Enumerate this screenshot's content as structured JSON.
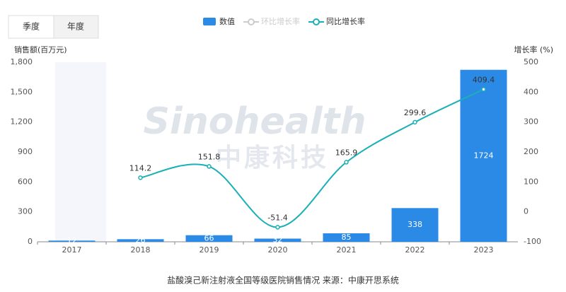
{
  "chart_data": {
    "type": "bar_line",
    "toggle_options": [
      "季度",
      "年度"
    ],
    "watermark": [
      "Sinohealth",
      "中康科技"
    ],
    "y_label": "销售额(百万元)",
    "y2_label": "增长率 (%)",
    "caption": "盐酸溴己新注射液全国等级医院销售情况 来源：中康开思系统",
    "categories": [
      "2017",
      "2018",
      "2019",
      "2020",
      "2021",
      "2022",
      "2023"
    ],
    "series": [
      {
        "name": "数值",
        "type": "bar",
        "color": "#2b8ae6",
        "values": [
          12,
          26,
          66,
          32,
          85,
          338,
          1724
        ]
      },
      {
        "name": "环比增长率",
        "type": "line",
        "color": "#cccccc",
        "visible": false,
        "axis": "y2",
        "values": [
          null,
          null,
          null,
          null,
          null,
          null,
          null
        ]
      },
      {
        "name": "同比增长率",
        "type": "line",
        "color": "#1ab0b5",
        "axis": "y2",
        "values": [
          null,
          114.2,
          151.8,
          -51.4,
          165.9,
          299.6,
          409.4
        ]
      }
    ],
    "ylim": [
      0,
      1800
    ],
    "yticks": [
      0,
      300,
      600,
      900,
      {
        "value": 1200,
        "label": "1,200"
      },
      {
        "value": 1500,
        "label": "1,500"
      },
      {
        "value": 1800,
        "label": "1,800"
      }
    ],
    "y2lim": [
      -100,
      500
    ],
    "y2ticks": [
      -100,
      0,
      100,
      200,
      300,
      400,
      500
    ],
    "grid": false
  }
}
